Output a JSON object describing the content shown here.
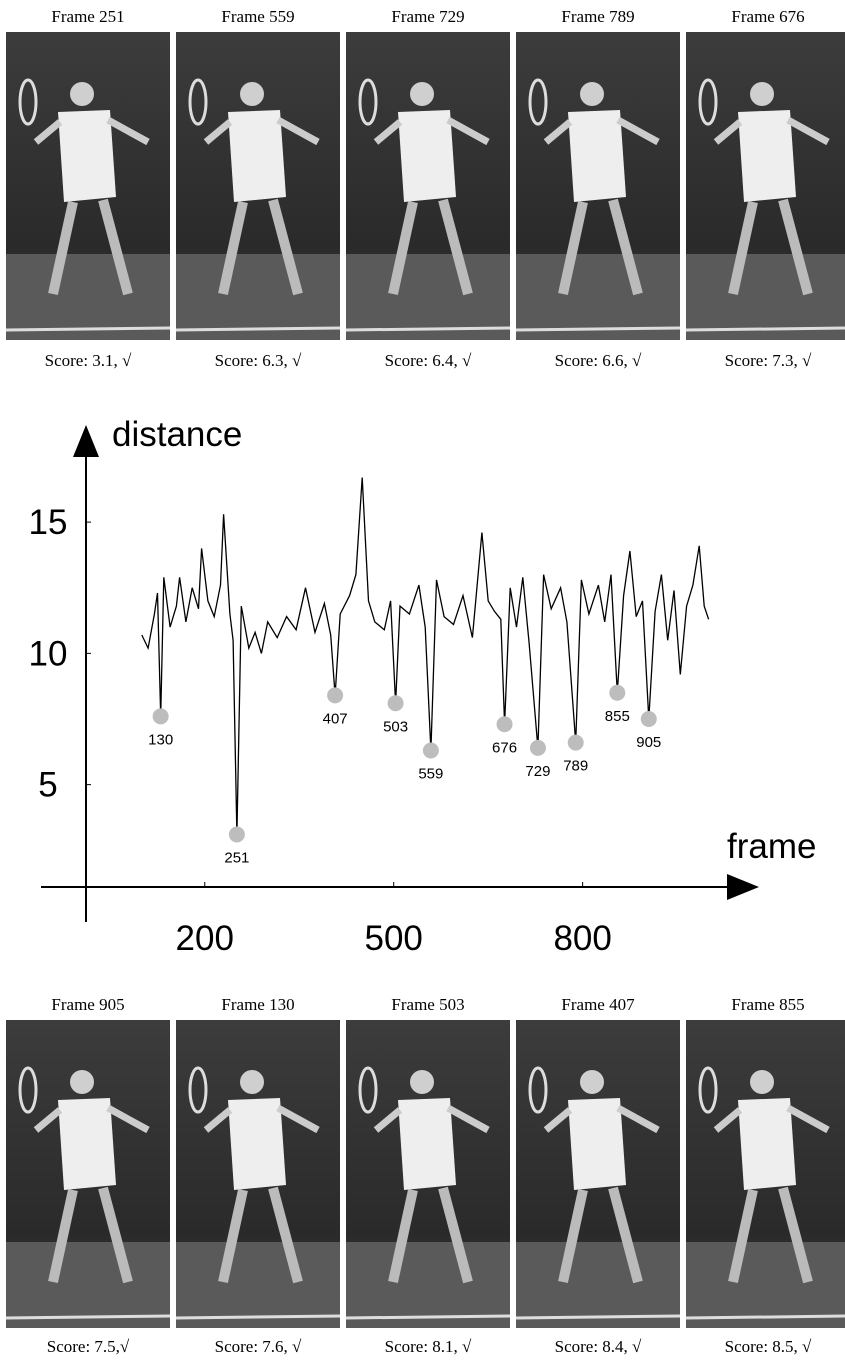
{
  "frames_top": [
    {
      "label": "Frame 251",
      "score": "Score: 3.1, √"
    },
    {
      "label": "Frame 559",
      "score": "Score: 6.3, √"
    },
    {
      "label": "Frame 729",
      "score": "Score: 6.4, √"
    },
    {
      "label": "Frame 789",
      "score": "Score: 6.6, √"
    },
    {
      "label": "Frame 676",
      "score": "Score: 7.3, √"
    }
  ],
  "frames_bottom": [
    {
      "label": "Frame 905",
      "score": "Score: 7.5,√"
    },
    {
      "label": "Frame 130",
      "score": "Score: 7.6, √"
    },
    {
      "label": "Frame 503",
      "score": "Score: 8.1, √"
    },
    {
      "label": "Frame 407",
      "score": "Score: 8.4, √"
    },
    {
      "label": "Frame 855",
      "score": "Score: 8.5, √"
    }
  ],
  "chart_data": {
    "type": "line",
    "x_label": "frame",
    "y_label": "distance",
    "xlim": [
      -60,
      1080
    ],
    "ylim": [
      1.1,
      18.7
    ],
    "xticks": [
      200,
      500,
      800
    ],
    "yticks": [
      5,
      10,
      15
    ],
    "series": [
      {
        "color": "#000000",
        "x": [
          100,
          110,
          120,
          125,
          130,
          135,
          145,
          155,
          160,
          170,
          180,
          190,
          195,
          205,
          215,
          225,
          230,
          240,
          245,
          251,
          258,
          270,
          280,
          290,
          300,
          315,
          330,
          345,
          360,
          375,
          390,
          400,
          407,
          415,
          430,
          440,
          450,
          460,
          470,
          485,
          495,
          503,
          510,
          525,
          540,
          550,
          559,
          568,
          580,
          595,
          610,
          625,
          640,
          650,
          660,
          670,
          676,
          685,
          695,
          705,
          715,
          729,
          738,
          750,
          765,
          775,
          789,
          798,
          810,
          825,
          835,
          845,
          855,
          865,
          875,
          885,
          895,
          905,
          915,
          925,
          935,
          945,
          955,
          965,
          975,
          985,
          993,
          1000
        ],
        "values": [
          10.7,
          10.2,
          11.5,
          12.3,
          7.6,
          12.9,
          11,
          11.8,
          12.9,
          11.2,
          12.5,
          11.7,
          14,
          12,
          11.4,
          12.6,
          15.3,
          11.5,
          10.5,
          3.1,
          11.8,
          10.2,
          10.8,
          10,
          11.2,
          10.6,
          11.4,
          10.9,
          12.5,
          10.8,
          11.9,
          10.7,
          8.4,
          11.5,
          12.2,
          13,
          16.7,
          12,
          11.2,
          10.9,
          12,
          8.1,
          11.8,
          11.5,
          12.6,
          11,
          6.3,
          12.8,
          11.4,
          11.1,
          12.2,
          10.6,
          14.6,
          12,
          11.6,
          11.3,
          7.3,
          12.5,
          11,
          12.9,
          10.4,
          6.4,
          13,
          11.7,
          12.5,
          11.2,
          6.6,
          12.8,
          11.5,
          12.6,
          11.2,
          13,
          8.5,
          12.2,
          13.9,
          11.4,
          12,
          7.5,
          11.6,
          13,
          10.5,
          12.4,
          9.2,
          11.8,
          12.6,
          14.1,
          11.8,
          11.3
        ]
      }
    ],
    "points": {
      "color": "#bdbdbd",
      "x": [
        130,
        251,
        407,
        503,
        559,
        676,
        729,
        789,
        855,
        905
      ],
      "values": [
        7.6,
        3.1,
        8.4,
        8.1,
        6.3,
        7.3,
        6.4,
        6.6,
        8.5,
        7.5
      ]
    }
  }
}
